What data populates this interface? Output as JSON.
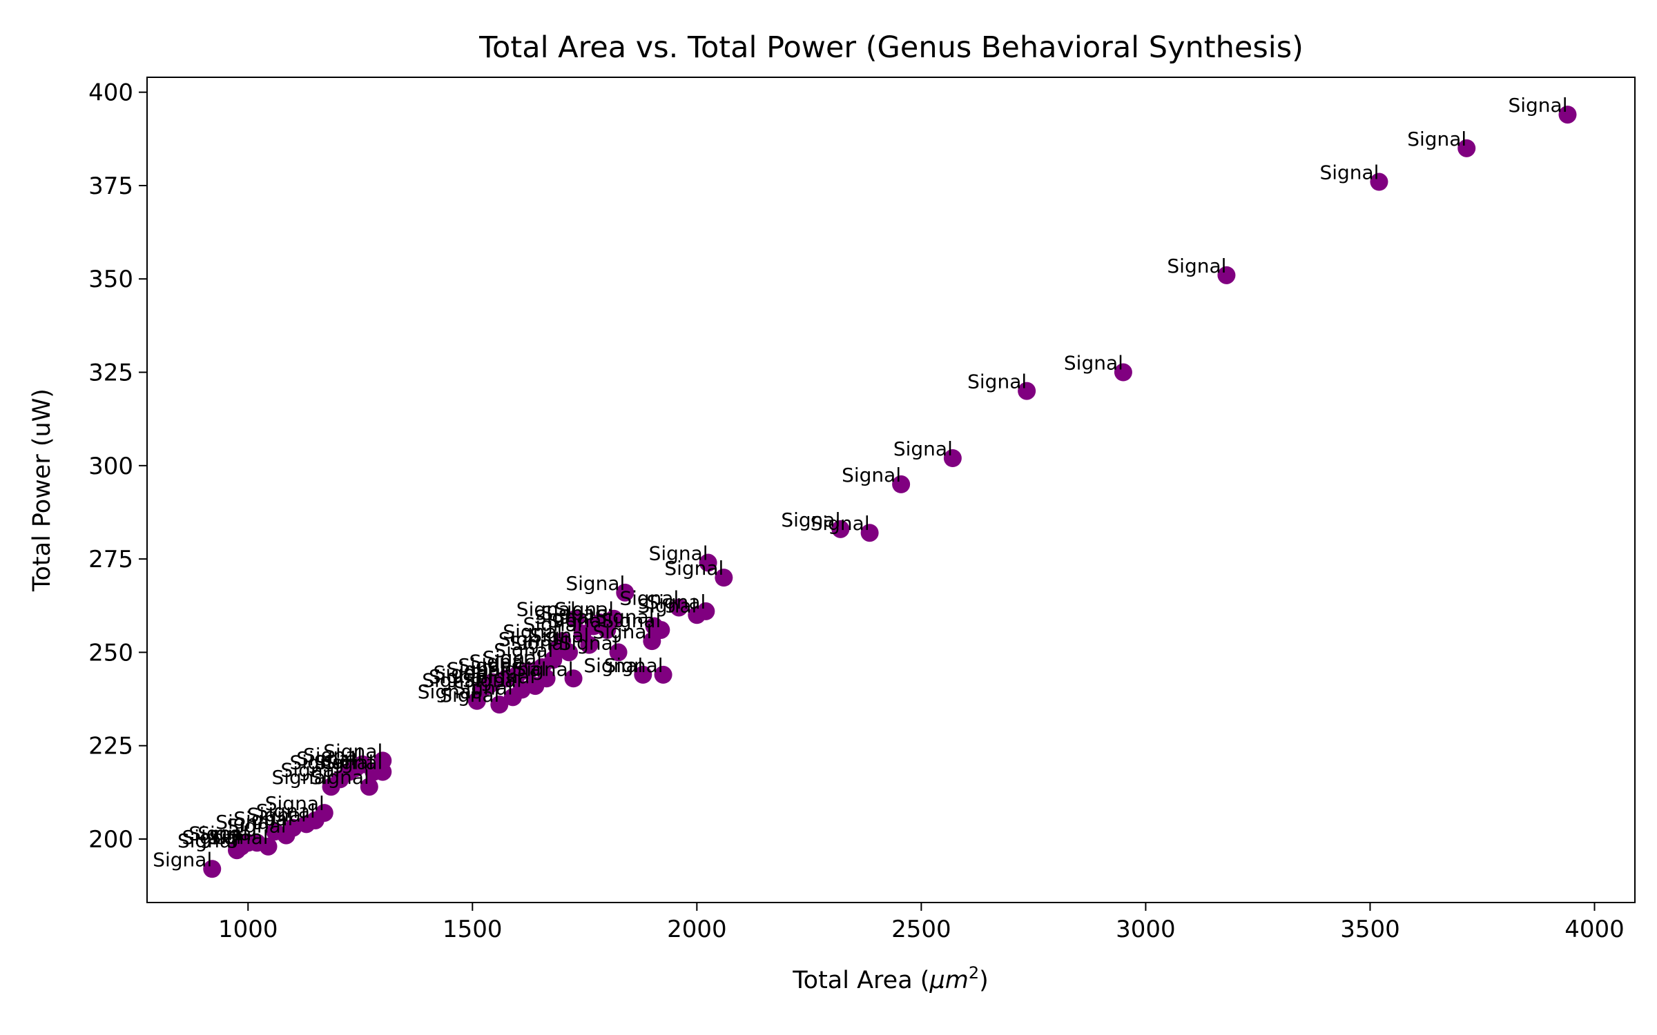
{
  "chart_data": {
    "type": "scatter",
    "title": "Total Area vs. Total Power (Genus Behavioral Synthesis)",
    "xlabel_main": "Total Area (",
    "xlabel_unit": "μm",
    "xlabel_sup": "2",
    "xlabel_close": ")",
    "ylabel": "Total Power (uW)",
    "xlim": [
      775,
      4090
    ],
    "ylim": [
      183,
      404
    ],
    "xticks": [
      1000,
      1500,
      2000,
      2500,
      3000,
      3500,
      4000
    ],
    "yticks": [
      200,
      225,
      250,
      275,
      300,
      325,
      350,
      375,
      400
    ],
    "marker_color": "#800080",
    "grid": false,
    "point_label": "Signal",
    "points": [
      {
        "x": 920,
        "y": 192
      },
      {
        "x": 975,
        "y": 197
      },
      {
        "x": 985,
        "y": 198
      },
      {
        "x": 1000,
        "y": 199
      },
      {
        "x": 1020,
        "y": 199
      },
      {
        "x": 1045,
        "y": 198
      },
      {
        "x": 1060,
        "y": 202
      },
      {
        "x": 1085,
        "y": 201
      },
      {
        "x": 1100,
        "y": 203
      },
      {
        "x": 1130,
        "y": 204
      },
      {
        "x": 1150,
        "y": 205
      },
      {
        "x": 1170,
        "y": 207
      },
      {
        "x": 1185,
        "y": 214
      },
      {
        "x": 1205,
        "y": 216
      },
      {
        "x": 1225,
        "y": 218
      },
      {
        "x": 1240,
        "y": 219
      },
      {
        "x": 1255,
        "y": 220
      },
      {
        "x": 1270,
        "y": 214
      },
      {
        "x": 1280,
        "y": 218
      },
      {
        "x": 1300,
        "y": 221
      },
      {
        "x": 1300,
        "y": 218
      },
      {
        "x": 1510,
        "y": 237
      },
      {
        "x": 1520,
        "y": 240
      },
      {
        "x": 1535,
        "y": 241
      },
      {
        "x": 1545,
        "y": 242
      },
      {
        "x": 1560,
        "y": 236
      },
      {
        "x": 1575,
        "y": 243
      },
      {
        "x": 1590,
        "y": 238
      },
      {
        "x": 1600,
        "y": 244
      },
      {
        "x": 1610,
        "y": 240
      },
      {
        "x": 1625,
        "y": 245
      },
      {
        "x": 1640,
        "y": 241
      },
      {
        "x": 1655,
        "y": 246
      },
      {
        "x": 1665,
        "y": 243
      },
      {
        "x": 1680,
        "y": 248
      },
      {
        "x": 1690,
        "y": 251
      },
      {
        "x": 1700,
        "y": 253
      },
      {
        "x": 1715,
        "y": 250
      },
      {
        "x": 1725,
        "y": 243
      },
      {
        "x": 1730,
        "y": 259
      },
      {
        "x": 1745,
        "y": 255
      },
      {
        "x": 1760,
        "y": 252
      },
      {
        "x": 1770,
        "y": 257
      },
      {
        "x": 1785,
        "y": 258
      },
      {
        "x": 1800,
        "y": 256
      },
      {
        "x": 1815,
        "y": 259
      },
      {
        "x": 1825,
        "y": 250
      },
      {
        "x": 1840,
        "y": 266
      },
      {
        "x": 1880,
        "y": 244
      },
      {
        "x": 1900,
        "y": 253
      },
      {
        "x": 1905,
        "y": 257
      },
      {
        "x": 1920,
        "y": 256
      },
      {
        "x": 1925,
        "y": 244
      },
      {
        "x": 1960,
        "y": 262
      },
      {
        "x": 2000,
        "y": 260
      },
      {
        "x": 2020,
        "y": 261
      },
      {
        "x": 2025,
        "y": 274
      },
      {
        "x": 2060,
        "y": 270
      },
      {
        "x": 2320,
        "y": 283
      },
      {
        "x": 2385,
        "y": 282
      },
      {
        "x": 2455,
        "y": 295
      },
      {
        "x": 2570,
        "y": 302
      },
      {
        "x": 2735,
        "y": 320
      },
      {
        "x": 2950,
        "y": 325
      },
      {
        "x": 3180,
        "y": 351
      },
      {
        "x": 3520,
        "y": 376
      },
      {
        "x": 3715,
        "y": 385
      },
      {
        "x": 3940,
        "y": 394
      }
    ]
  }
}
